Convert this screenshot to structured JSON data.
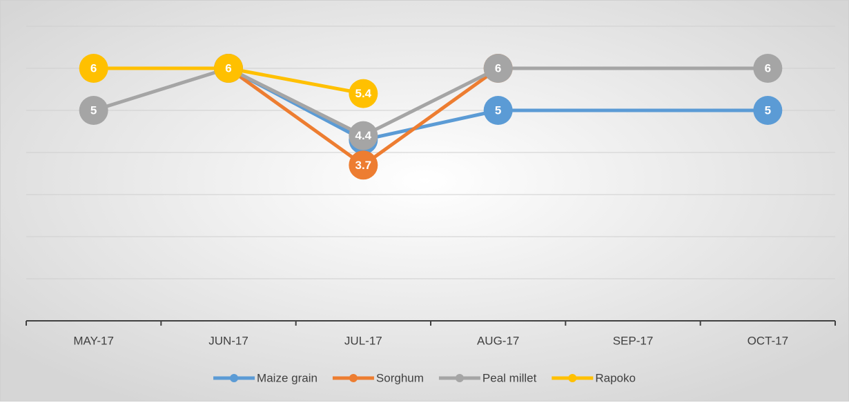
{
  "chart_data": {
    "type": "line",
    "categories": [
      "MAY-17",
      "JUN-17",
      "JUL-17",
      "AUG-17",
      "SEP-17",
      "OCT-17"
    ],
    "series": [
      {
        "name": "Maize grain",
        "color": "#5b9bd5",
        "values": [
          null,
          6,
          4.3,
          5,
          null,
          5
        ]
      },
      {
        "name": "Sorghum",
        "color": "#ed7d31",
        "values": [
          null,
          6,
          3.7,
          6,
          null,
          null
        ]
      },
      {
        "name": "Peal millet",
        "color": "#a5a5a5",
        "values": [
          5,
          6,
          4.4,
          6,
          null,
          6
        ]
      },
      {
        "name": "Rapoko",
        "color": "#ffc000",
        "values": [
          6,
          6,
          5.4,
          null,
          null,
          null
        ]
      }
    ],
    "ylim": [
      0,
      7
    ],
    "yticks": [
      1,
      2,
      3,
      4,
      5,
      6,
      7
    ],
    "grid": true,
    "span_gaps": true,
    "legend": "bottom"
  }
}
